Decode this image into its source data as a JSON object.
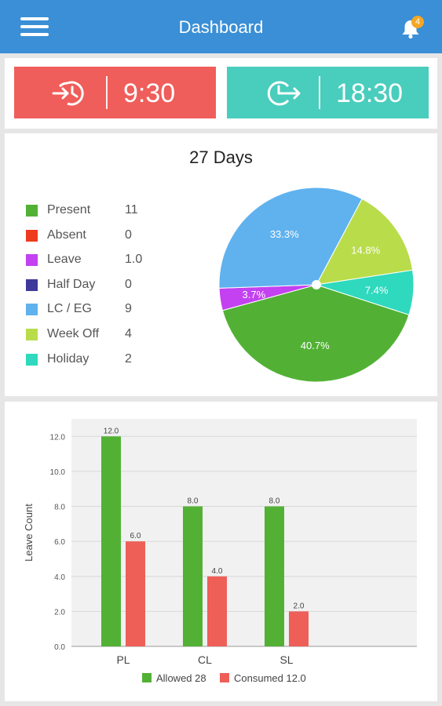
{
  "header": {
    "title": "Dashboard",
    "notification_count": "4"
  },
  "attendance": {
    "check_in_time": "9:30",
    "check_out_time": "18:30"
  },
  "summary": {
    "title": "27 Days",
    "legend": [
      {
        "label": "Present",
        "value": "11",
        "color": "#52b135"
      },
      {
        "label": "Absent",
        "value": "0",
        "color": "#ee3b1d"
      },
      {
        "label": "Leave",
        "value": "1.0",
        "color": "#c341f0"
      },
      {
        "label": "Half Day",
        "value": "0",
        "color": "#3d3a9a"
      },
      {
        "label": "LC / EG",
        "value": "9",
        "color": "#5fb2ee"
      },
      {
        "label": "Week Off",
        "value": "4",
        "color": "#b9dc4a"
      },
      {
        "label": "Holiday",
        "value": "2",
        "color": "#2fd9bd"
      }
    ]
  },
  "chart_data": [
    {
      "type": "pie",
      "title": "27 Days",
      "slices": [
        {
          "label": "Present",
          "value": 40.7,
          "text": "40.7%",
          "color": "#52b135"
        },
        {
          "label": "Leave",
          "value": 3.7,
          "text": "3.7%",
          "color": "#c341f0"
        },
        {
          "label": "LC / EG",
          "value": 33.3,
          "text": "33.3%",
          "color": "#5fb2ee"
        },
        {
          "label": "Week Off",
          "value": 14.8,
          "text": "14.8%",
          "color": "#b9dc4a"
        },
        {
          "label": "Holiday",
          "value": 7.4,
          "text": "7.4%",
          "color": "#2fd9bd"
        }
      ]
    },
    {
      "type": "bar",
      "categories": [
        "PL",
        "CL",
        "SL"
      ],
      "series": [
        {
          "name": "Allowed 28",
          "values": [
            12.0,
            8.0,
            8.0
          ],
          "labels": [
            "12.0",
            "8.0",
            "8.0"
          ],
          "color": "#52b135"
        },
        {
          "name": "Consumed 12.0",
          "values": [
            6.0,
            4.0,
            2.0
          ],
          "labels": [
            "6.0",
            "4.0",
            "2.0"
          ],
          "color": "#ee5f58"
        }
      ],
      "ylabel": "Leave Count",
      "ylim": [
        0,
        13
      ],
      "yticks": [
        "0.0",
        "2.0",
        "4.0",
        "6.0",
        "8.0",
        "10.0",
        "12.0"
      ],
      "grid": true,
      "legend": "bottom"
    }
  ]
}
